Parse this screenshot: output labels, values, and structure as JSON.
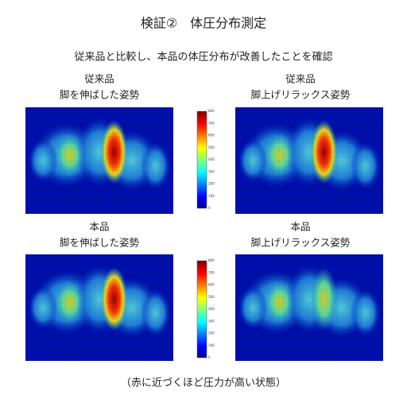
{
  "title": "検証②　体圧分布測定",
  "subtitle": "従来品と比較し、本品の体圧分布が改善したことを確認",
  "panels": [
    {
      "line1": "従来品",
      "line2": "脚を伸ばした姿勢"
    },
    {
      "line1": "従来品",
      "line2": "脚上げリラックス姿勢"
    },
    {
      "line1": "本品",
      "line2": "脚を伸ばした姿勢"
    },
    {
      "line1": "本品",
      "line2": "脚上げリラックス姿勢"
    }
  ],
  "colorbar_ticks": [
    "800",
    "700",
    "600",
    "500",
    "400",
    "300",
    "200",
    "100",
    "0"
  ],
  "caption": "（赤に近づくほど圧力が高い状態）"
}
